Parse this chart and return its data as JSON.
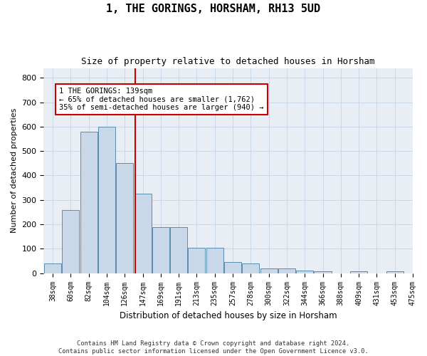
{
  "title": "1, THE GORINGS, HORSHAM, RH13 5UD",
  "subtitle": "Size of property relative to detached houses in Horsham",
  "xlabel": "Distribution of detached houses by size in Horsham",
  "ylabel": "Number of detached properties",
  "bar_color": "#c8d8e8",
  "bar_edge_color": "#5b8db0",
  "bar_heights": [
    40,
    260,
    580,
    600,
    450,
    325,
    190,
    190,
    105,
    105,
    45,
    40,
    20,
    20,
    10,
    8,
    0,
    8,
    0,
    8
  ],
  "bin_labels": [
    "38sqm",
    "60sqm",
    "82sqm",
    "104sqm",
    "126sqm",
    "147sqm",
    "169sqm",
    "191sqm",
    "213sqm",
    "235sqm",
    "257sqm",
    "278sqm",
    "300sqm",
    "322sqm",
    "344sqm",
    "366sqm",
    "388sqm",
    "409sqm",
    "431sqm",
    "453sqm"
  ],
  "extra_label": "475sqm",
  "vline_x": 4.57,
  "vline_color": "#cc0000",
  "annotation_text": "1 THE GORINGS: 139sqm\n← 65% of detached houses are smaller (1,762)\n35% of semi-detached houses are larger (940) →",
  "annotation_box_facecolor": "#ffffff",
  "annotation_box_edgecolor": "#cc0000",
  "ylim": [
    0,
    840
  ],
  "yticks": [
    0,
    100,
    200,
    300,
    400,
    500,
    600,
    700,
    800
  ],
  "grid_color": "#c8d8e8",
  "bg_color": "#e8eef4",
  "footer": "Contains HM Land Registry data © Crown copyright and database right 2024.\nContains public sector information licensed under the Open Government Licence v3.0."
}
